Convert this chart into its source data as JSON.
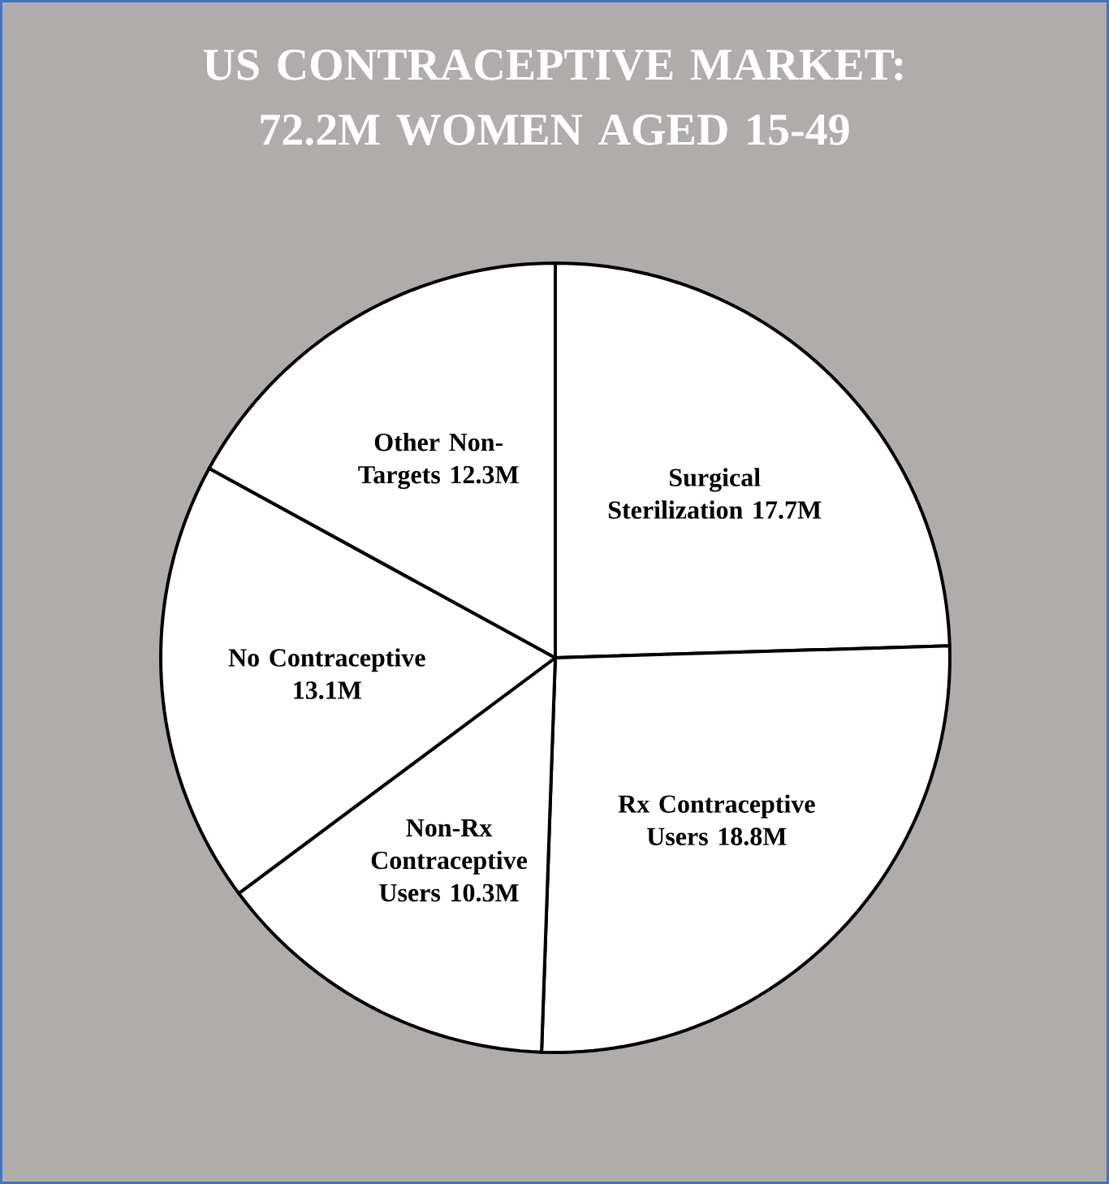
{
  "chart_data": {
    "type": "pie",
    "title": "US CONTRACEPTIVE MARKET: 72.2M WOMEN AGED 15-49",
    "categories": [
      "Surgical Sterilization",
      "Rx Contraceptive Users",
      "Non-Rx Contraceptive Users",
      "No Contraceptive",
      "Other Non-Targets"
    ],
    "values": [
      17.7,
      18.8,
      10.3,
      13.1,
      12.3
    ],
    "value_labels": [
      "17.7M",
      "18.8M",
      "10.3M",
      "13.1M",
      "12.3M"
    ],
    "colors": [
      "#ffffff",
      "#ffffff",
      "#ffffff",
      "#ffffff",
      "#ffffff"
    ]
  }
}
